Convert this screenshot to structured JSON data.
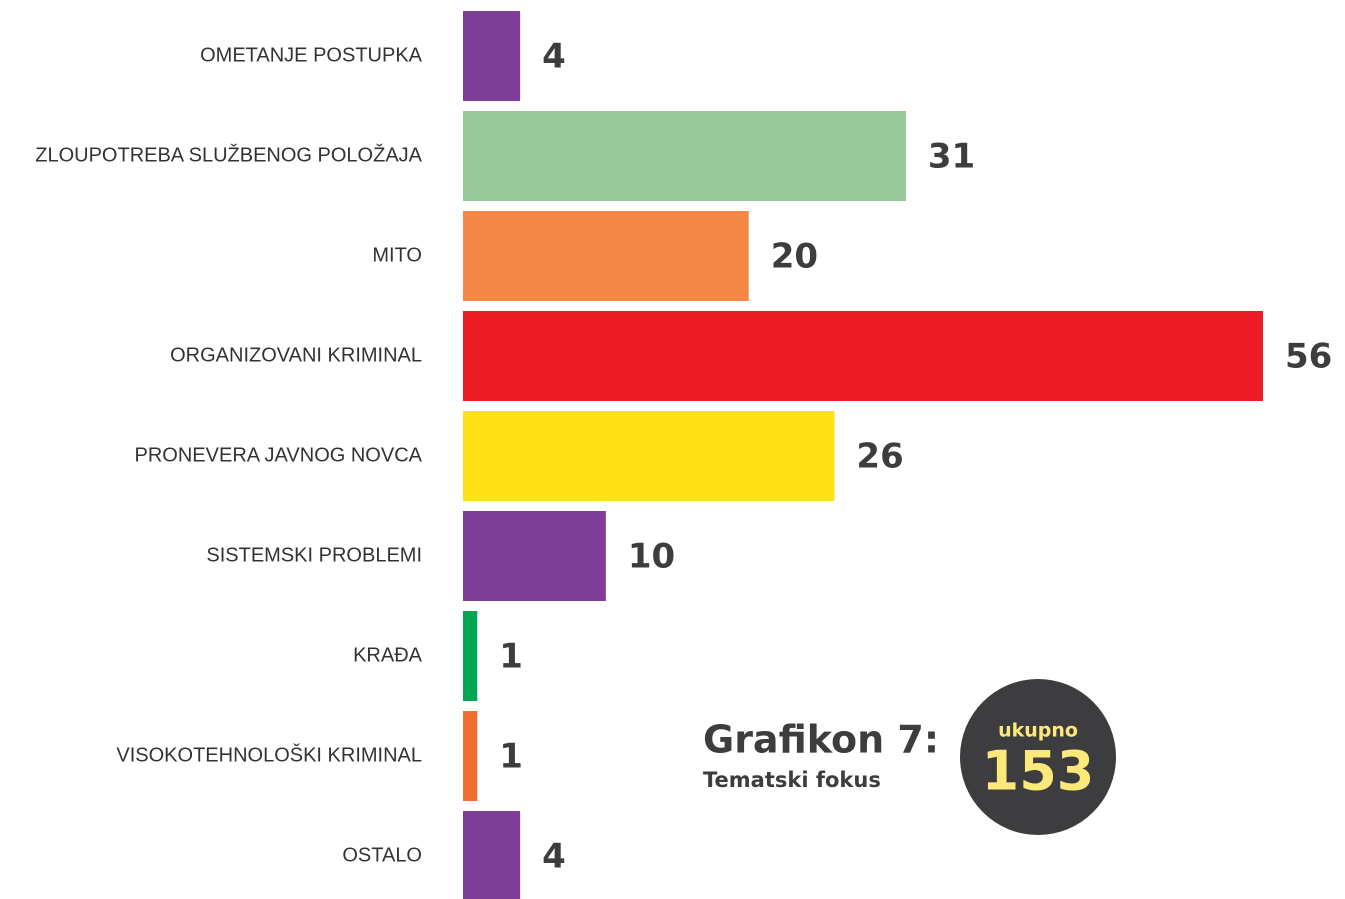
{
  "chart_data": {
    "type": "bar",
    "orientation": "horizontal",
    "title": "Grafikon 7:",
    "subtitle": "Tematski fokus",
    "total_label": "ukupno",
    "total": 153,
    "categories": [
      "OMETANJE POSTUPKA",
      "ZLOUPOTREBA SLUŽBENOG POLOŽAJA",
      "MITO",
      "ORGANIZOVANI KRIMINAL",
      "PRONEVERA JAVNOG NOVCA",
      "SISTEMSKI PROBLEMI",
      "KRAĐA",
      "VISOKOTEHNOLOŠKI KRIMINAL",
      "OSTALO"
    ],
    "values": [
      4,
      31,
      20,
      56,
      26,
      10,
      1,
      1,
      4
    ],
    "colors": [
      "#7f3f98",
      "#99c89a",
      "#f48646",
      "#ed1c24",
      "#fde016",
      "#7f3f98",
      "#00a651",
      "#f26d30",
      "#7f3f98"
    ]
  }
}
